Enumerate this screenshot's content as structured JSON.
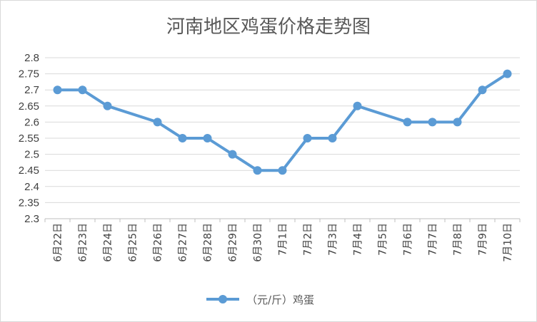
{
  "chart_data": {
    "type": "line",
    "title": "河南地区鸡蛋价格走势图",
    "xlabel": "",
    "ylabel": "",
    "ylim": [
      2.3,
      2.8
    ],
    "yticks": [
      "2.8",
      "2.75",
      "2.7",
      "2.65",
      "2.6",
      "2.55",
      "2.5",
      "2.45",
      "2.4",
      "2.35",
      "2.3"
    ],
    "grid": true,
    "legend_position": "bottom",
    "categories": [
      "6月22日",
      "6月23日",
      "6月24日",
      "6月25日",
      "6月26日",
      "6月27日",
      "6月28日",
      "6月29日",
      "6月30日",
      "7月1日",
      "7月2日",
      "7月3日",
      "7月4日",
      "7月5日",
      "7月6日",
      "7月7日",
      "7月8日",
      "7月9日",
      "7月10日"
    ],
    "series": [
      {
        "name": "（元/斤）鸡蛋",
        "color": "#5b9bd5",
        "values": [
          2.7,
          2.7,
          2.65,
          null,
          2.6,
          2.55,
          2.55,
          2.5,
          2.45,
          2.45,
          2.55,
          2.55,
          2.65,
          null,
          2.6,
          2.6,
          2.6,
          2.7,
          2.75
        ]
      }
    ]
  }
}
